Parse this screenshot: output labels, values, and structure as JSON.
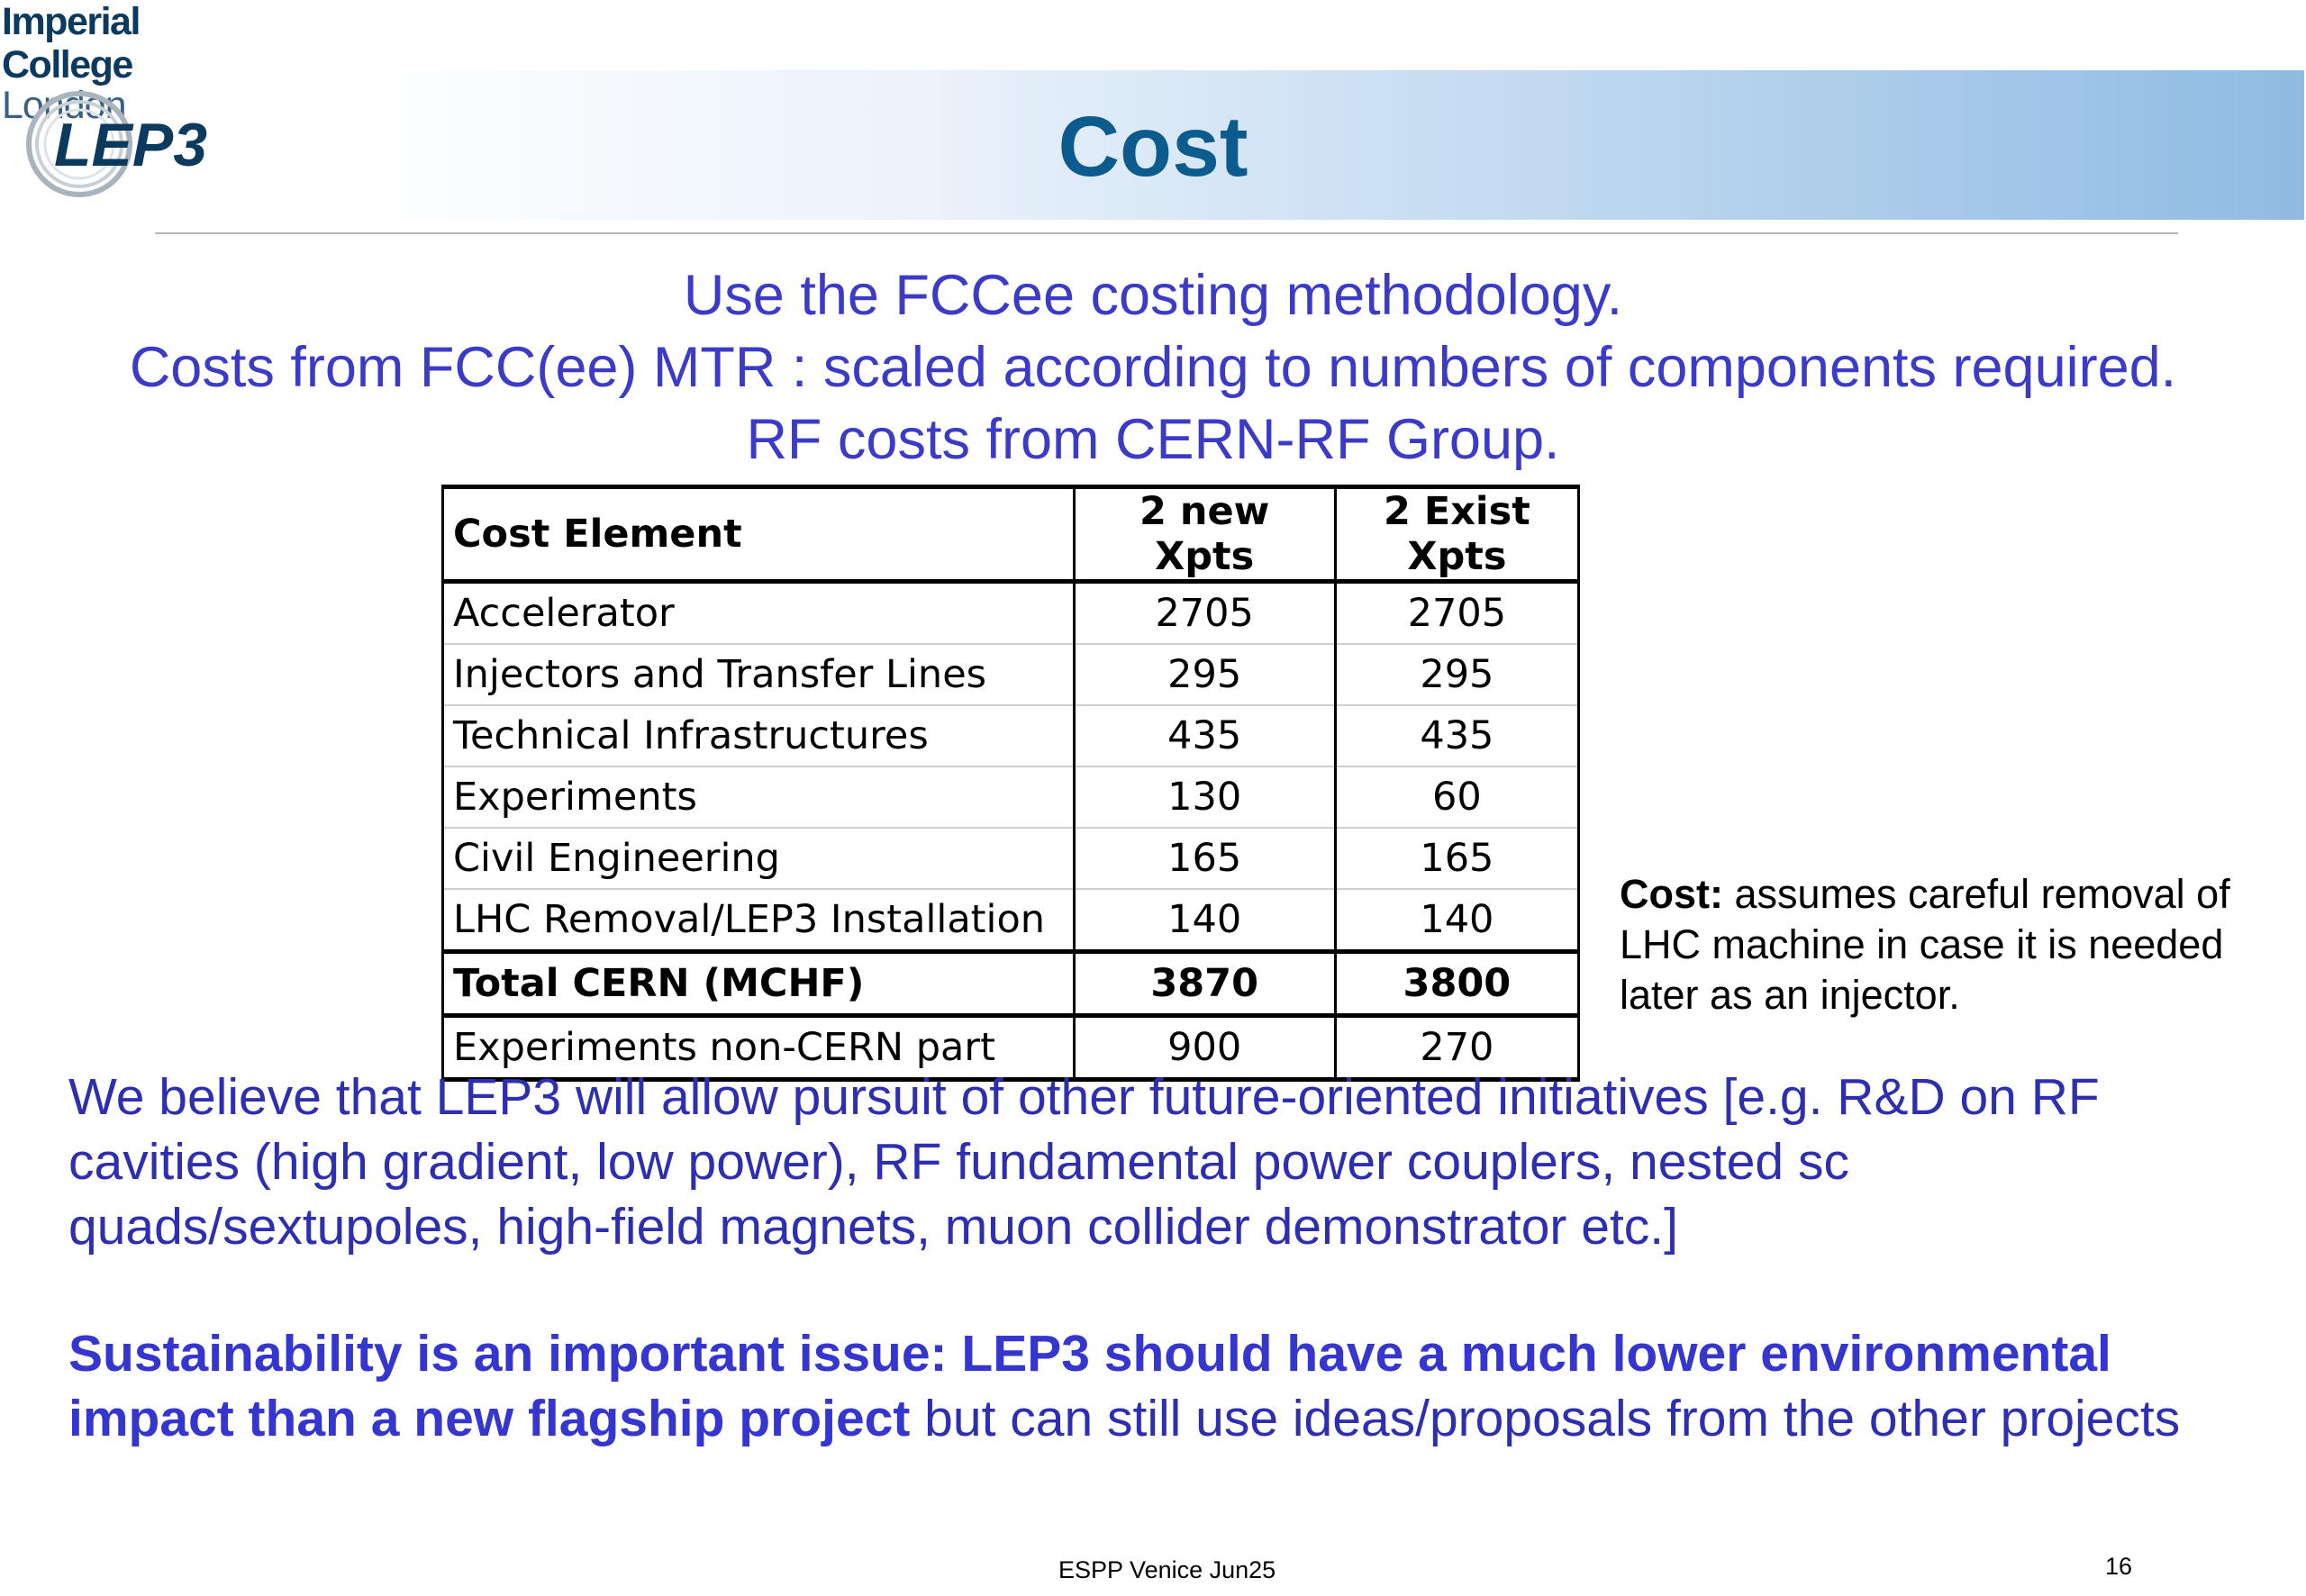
{
  "header": {
    "org_line1": "Imperial College",
    "org_line2": "London",
    "project_logo": "LEP3",
    "title": "Cost"
  },
  "intro": [
    "Use the FCCee costing methodology.",
    "Costs from FCC(ee) MTR : scaled according to numbers of components required.",
    "RF costs from CERN-RF Group."
  ],
  "table": {
    "columns": [
      "Cost Element",
      "2 new Xpts",
      "2 Exist Xpts"
    ],
    "rows": [
      {
        "label": "Accelerator",
        "new": "2705",
        "exist": "2705"
      },
      {
        "label": "Injectors and Transfer Lines",
        "new": "295",
        "exist": "295"
      },
      {
        "label": "Technical Infrastructures",
        "new": "435",
        "exist": "435"
      },
      {
        "label": "Experiments",
        "new": "130",
        "exist": "60"
      },
      {
        "label": "Civil Engineering",
        "new": "165",
        "exist": "165"
      },
      {
        "label": "LHC Removal/LEP3 Installation",
        "new": "140",
        "exist": "140"
      }
    ],
    "total": {
      "label": "Total CERN (MCHF)",
      "new": "3870",
      "exist": "3800"
    },
    "extra": {
      "label": "Experiments non-CERN part",
      "new": "900",
      "exist": "270"
    }
  },
  "note": {
    "bold": "Cost:",
    "text": " assumes careful removal of LHC machine in case it is needed later as an injector."
  },
  "paragraph1": "We believe that LEP3 will allow pursuit of other future-oriented initiatives [e.g. R&D on RF cavities (high gradient, low power), RF fundamental power couplers, nested sc quads/sextupoles, high-field magnets, muon collider demonstrator etc.]",
  "paragraph2": {
    "bold": "Sustainability is an important issue: LEP3 should have a much lower environmental impact than a new flagship project",
    "text": " but can still use ideas/proposals from the other projects"
  },
  "footer": {
    "center": "ESPP Venice Jun25",
    "page": "16"
  },
  "colors": {
    "title": "#0b5b8e",
    "intro_text": "#3b3bc8",
    "body_text": "#2e2eb0",
    "banner_end": "#8fbbe3"
  }
}
